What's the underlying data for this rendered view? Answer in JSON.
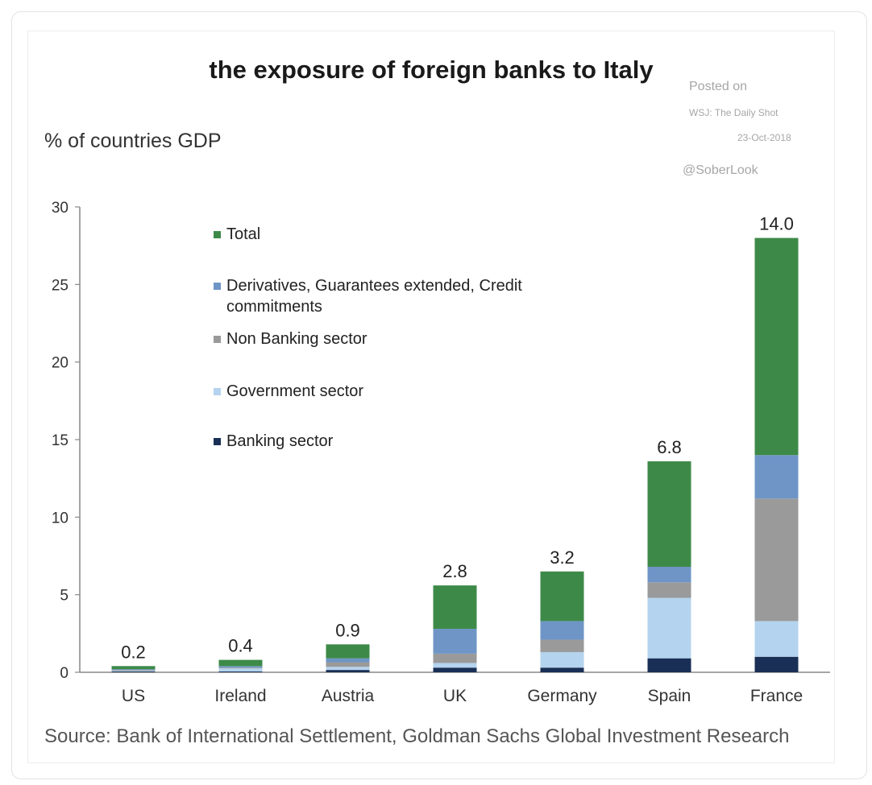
{
  "chart_data": {
    "type": "bar",
    "stacked": true,
    "title": "the exposure of foreign banks to Italy",
    "ylabel": "% of countries GDP",
    "ylim": [
      0,
      30
    ],
    "yticks": [
      0,
      5,
      10,
      15,
      20,
      25,
      30
    ],
    "categories": [
      "US",
      "Ireland",
      "Austria",
      "UK",
      "Germany",
      "Spain",
      "France"
    ],
    "series": [
      {
        "name": "Banking sector",
        "color": "#1a2f55",
        "values": [
          0.05,
          0.05,
          0.15,
          0.3,
          0.3,
          0.9,
          1.0
        ]
      },
      {
        "name": "Government sector",
        "color": "#b4d3ee",
        "values": [
          0.05,
          0.2,
          0.2,
          0.3,
          1.0,
          3.9,
          2.3
        ]
      },
      {
        "name": "Non Banking sector",
        "color": "#9a9a9a",
        "values": [
          0.05,
          0.05,
          0.3,
          0.6,
          0.8,
          1.0,
          7.9
        ]
      },
      {
        "name": "Derivatives, Guarantees extended, Credit commitments",
        "color": "#6e95c6",
        "values": [
          0.05,
          0.1,
          0.25,
          1.6,
          1.2,
          1.0,
          2.8
        ]
      },
      {
        "name": "Total",
        "color": "#3d8a48",
        "values": [
          0.2,
          0.4,
          0.9,
          2.8,
          3.2,
          6.8,
          14.0
        ]
      }
    ],
    "data_labels": [
      "0.2",
      "0.4",
      "0.9",
      "2.8",
      "3.2",
      "6.8",
      "14.0"
    ],
    "legend_order": [
      "Total",
      "Derivatives, Guarantees extended, Credit commitments",
      "Non Banking sector",
      "Government sector",
      "Banking sector"
    ],
    "legend_labels": [
      [
        "Total"
      ],
      [
        "Derivatives, Guarantees extended, Credit",
        "commitments"
      ],
      [
        "Non Banking sector"
      ],
      [
        "Government sector"
      ],
      [
        "Banking sector"
      ]
    ],
    "legend_position": "top-left",
    "grid": false
  },
  "credits": {
    "posted_on": "Posted on",
    "outlet": "WSJ: The Daily Shot",
    "date": "23-Oct-2018",
    "handle": "@SoberLook"
  },
  "source": "Source: Bank of International Settlement, Goldman Sachs Global Investment Research"
}
